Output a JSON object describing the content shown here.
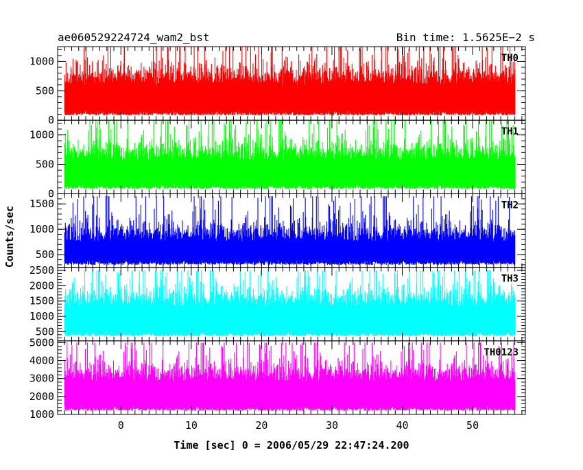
{
  "chart_data": {
    "type": "line",
    "title_left": "ae060529224724_wam2_bst",
    "title_right": "Bin time: 1.5625E−2 s",
    "xlabel": "Time [sec] 0 = 2006/05/29 22:47:24.200",
    "ylabel": "Counts/sec",
    "xlim": [
      -9,
      57.5
    ],
    "x_range_data": [
      -8,
      56
    ],
    "x_ticks": [
      {
        "value": 0,
        "label": "0"
      },
      {
        "value": 10,
        "label": "10"
      },
      {
        "value": 20,
        "label": "20"
      },
      {
        "value": 30,
        "label": "30"
      },
      {
        "value": 40,
        "label": "40"
      },
      {
        "value": 50,
        "label": "50"
      }
    ],
    "panels": [
      {
        "name": "TH0",
        "color": "#ff0000",
        "ylim": [
          0,
          1250
        ],
        "baseline": 600,
        "low": 80,
        "high": 1250,
        "y_ticks": [
          {
            "value": 0,
            "label": "0"
          },
          {
            "value": 500,
            "label": "500"
          },
          {
            "value": 1000,
            "label": "1000"
          }
        ]
      },
      {
        "name": "TH1",
        "color": "#00ff00",
        "ylim": [
          0,
          1250
        ],
        "baseline": 550,
        "low": 80,
        "high": 1250,
        "y_ticks": [
          {
            "value": 0,
            "label": "0"
          },
          {
            "value": 500,
            "label": "500"
          },
          {
            "value": 1000,
            "label": "1000"
          }
        ]
      },
      {
        "name": "TH2",
        "color": "#0000ff",
        "ylim": [
          250,
          1700
        ],
        "baseline": 750,
        "low": 300,
        "high": 1650,
        "y_ticks": [
          {
            "value": 500,
            "label": "500"
          },
          {
            "value": 1000,
            "label": "1000"
          },
          {
            "value": 1500,
            "label": "1500"
          }
        ]
      },
      {
        "name": "TH3",
        "color": "#00ffff",
        "ylim": [
          200,
          2600
        ],
        "baseline": 1300,
        "low": 350,
        "high": 2500,
        "y_ticks": [
          {
            "value": 500,
            "label": "500"
          },
          {
            "value": 1000,
            "label": "1000"
          },
          {
            "value": 1500,
            "label": "1500"
          },
          {
            "value": 2000,
            "label": "2000"
          },
          {
            "value": 2500,
            "label": "2500"
          }
        ]
      },
      {
        "name": "TH0123",
        "color": "#ff00ff",
        "ylim": [
          1000,
          5100
        ],
        "baseline": 2800,
        "low": 1200,
        "high": 5000,
        "y_ticks": [
          {
            "value": 1000,
            "label": "1000"
          },
          {
            "value": 2000,
            "label": "2000"
          },
          {
            "value": 3000,
            "label": "3000"
          },
          {
            "value": 4000,
            "label": "4000"
          },
          {
            "value": 5000,
            "label": "5000"
          }
        ]
      }
    ]
  }
}
